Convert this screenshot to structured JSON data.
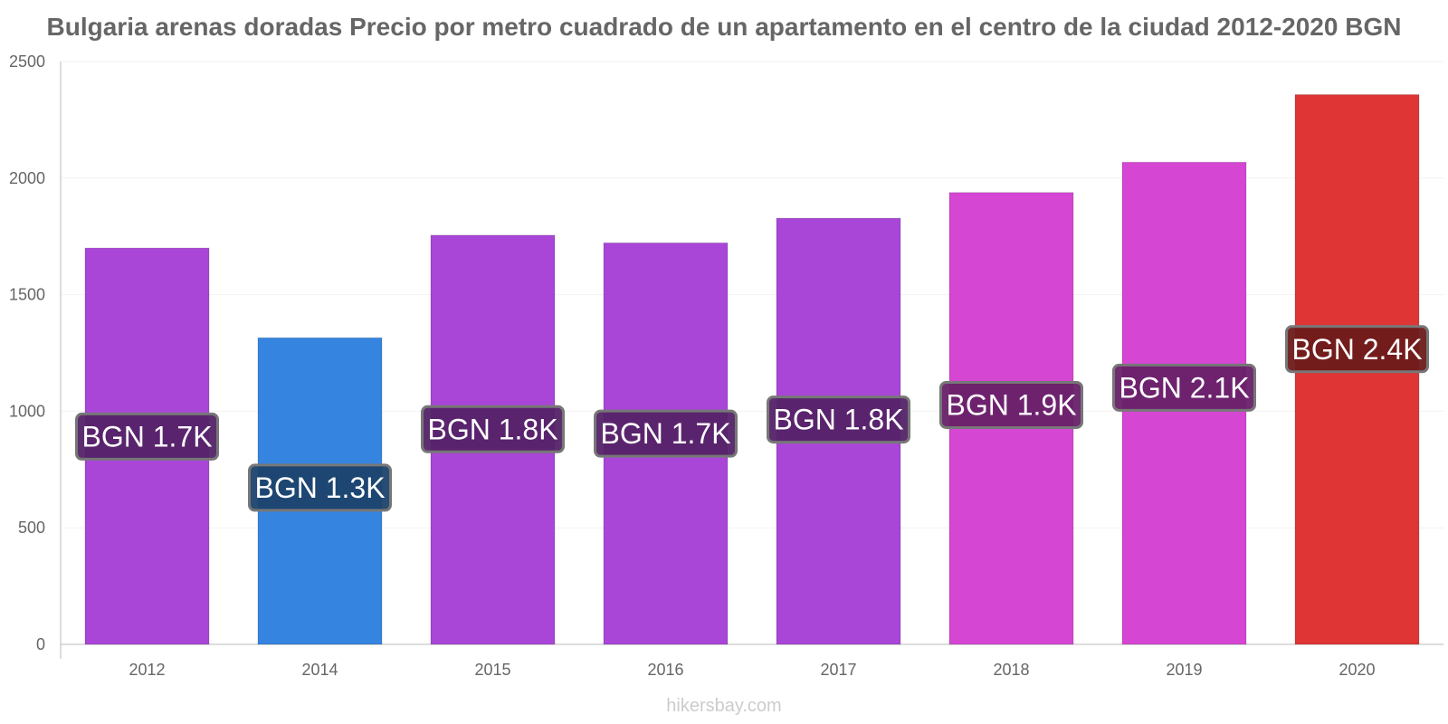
{
  "chart_data": {
    "type": "bar",
    "title": "Bulgaria arenas doradas Precio por metro cuadrado de un apartamento en el centro de la ciudad 2012-2020 BGN",
    "xlabel": "",
    "ylabel": "",
    "categories": [
      "2012",
      "2014",
      "2015",
      "2016",
      "2017",
      "2018",
      "2019",
      "2020"
    ],
    "values": [
      1700,
      1315,
      1755,
      1722,
      1828,
      1938,
      2068,
      2358
    ],
    "data_labels": [
      "BGN 1.7K",
      "BGN 1.3K",
      "BGN 1.8K",
      "BGN 1.7K",
      "BGN 1.8K",
      "BGN 1.9K",
      "BGN 2.1K",
      "BGN 2.4K"
    ],
    "bar_colors": [
      "#a946d8",
      "#3584e0",
      "#a946d8",
      "#a946d8",
      "#a946d8",
      "#d546d3",
      "#d546d3",
      "#e03535"
    ],
    "label_bg_colors": [
      "#542367",
      "#1c426c",
      "#542367",
      "#542367",
      "#542367",
      "#682168",
      "#682168",
      "#6d1b1b"
    ],
    "ylim": [
      0,
      2500
    ],
    "yticks": [
      "0",
      "500",
      "1000",
      "1500",
      "2000",
      "2500"
    ],
    "grid": true,
    "legend": "none"
  },
  "footer": {
    "watermark": "hikersbay.com"
  }
}
